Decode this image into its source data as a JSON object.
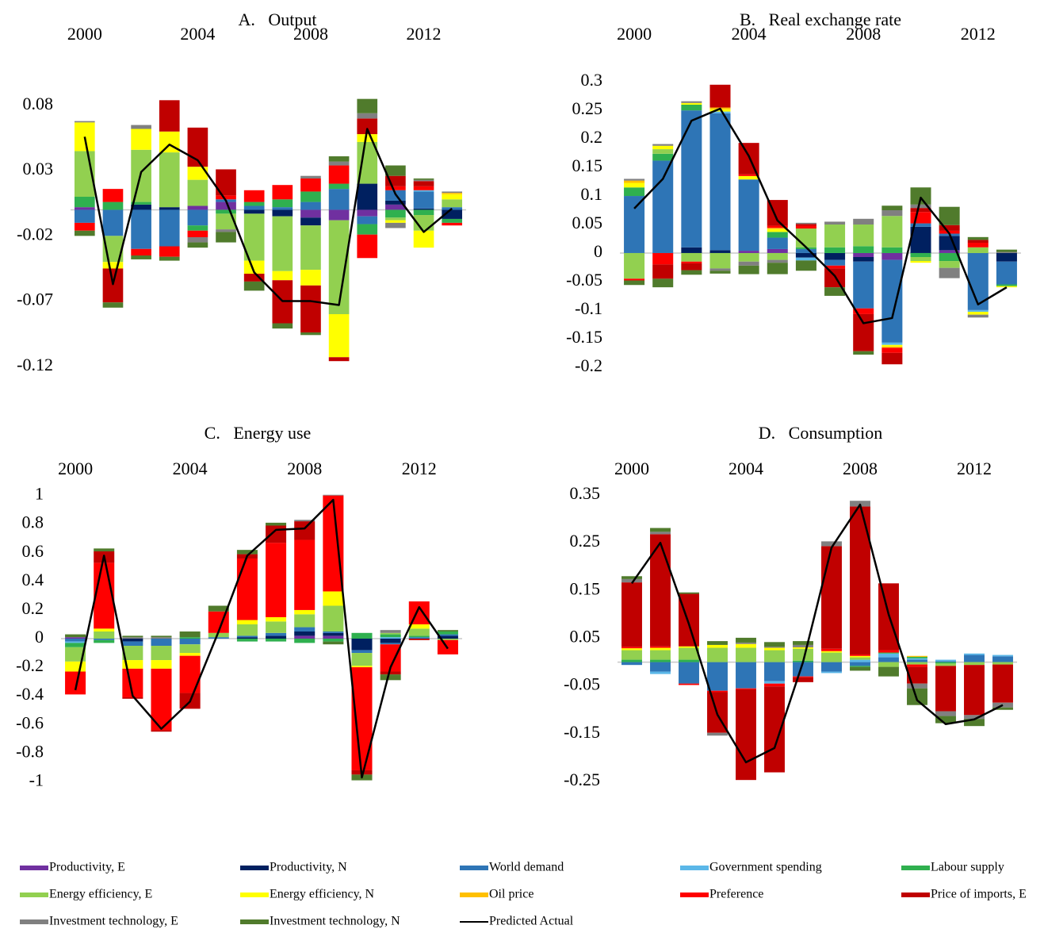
{
  "chart_data": [
    {
      "type": "bar",
      "title": "A.   Output",
      "categories": [
        2000,
        null,
        null,
        null,
        2004,
        null,
        null,
        null,
        2008,
        null,
        null,
        null,
        2012,
        null
      ],
      "ylim": [
        -0.125,
        0.1
      ],
      "yticks": [
        0.08,
        0.03,
        -0.02,
        -0.07,
        -0.12
      ],
      "series": [
        {
          "name": "Productivity, E",
          "color": "#7030a0",
          "values": [
            0.002,
            0,
            0,
            0,
            0.003,
            0.006,
            0,
            0,
            -0.006,
            -0.008,
            -0.005,
            0.004,
            0,
            0
          ]
        },
        {
          "name": "Productivity, N",
          "color": "#002060",
          "values": [
            0,
            0,
            0.004,
            0.002,
            0,
            0,
            -0.003,
            -0.005,
            -0.006,
            0,
            0.02,
            0.003,
            0.001,
            -0.007
          ]
        },
        {
          "name": "World demand",
          "color": "#2e75b6",
          "values": [
            -0.01,
            -0.02,
            -0.03,
            -0.028,
            -0.012,
            0.002,
            0.003,
            0.002,
            0.006,
            0.016,
            -0.006,
            0.008,
            0.013,
            0.002
          ]
        },
        {
          "name": "Government spending",
          "color": "#5bb7e8",
          "values": [
            0,
            0,
            0,
            0,
            0,
            0,
            0,
            0,
            0,
            0,
            0,
            0,
            0.001,
            0
          ]
        },
        {
          "name": "Labour supply",
          "color": "#2fb04f",
          "values": [
            0.008,
            0.006,
            0.002,
            0,
            -0.004,
            -0.003,
            0.003,
            0.006,
            0.008,
            0.004,
            -0.008,
            -0.006,
            -0.004,
            -0.003
          ]
        },
        {
          "name": "Energy efficiency, E",
          "color": "#92d050",
          "values": [
            0.035,
            -0.02,
            0.04,
            0.042,
            0.02,
            -0.012,
            -0.036,
            -0.042,
            -0.034,
            -0.072,
            0.032,
            -0.002,
            -0.012,
            0.006
          ]
        },
        {
          "name": "Energy efficiency, N",
          "color": "#ffff00",
          "values": [
            0.022,
            -0.005,
            0.016,
            0.016,
            0.01,
            0,
            -0.01,
            -0.007,
            -0.012,
            -0.033,
            0.006,
            -0.002,
            -0.013,
            0.004
          ]
        },
        {
          "name": "Oil price",
          "color": "#ffc000",
          "values": [
            0,
            0,
            0,
            0,
            0,
            0,
            0,
            0,
            0,
            0,
            0,
            0,
            0,
            0.001
          ]
        },
        {
          "name": "Preference",
          "color": "#ff0000",
          "values": [
            -0.006,
            0.01,
            -0.005,
            -0.008,
            -0.005,
            0.003,
            0.009,
            0.011,
            0.01,
            0.014,
            -0.018,
            0.003,
            0.003,
            -0.002
          ]
        },
        {
          "name": "Price of imports, E",
          "color": "#c00000",
          "values": [
            0,
            -0.026,
            0,
            0.024,
            0.03,
            0.02,
            -0.006,
            -0.033,
            -0.036,
            -0.003,
            0.012,
            0.008,
            0.004,
            0
          ]
        },
        {
          "name": "Investment technology, E",
          "color": "#808080",
          "values": [
            0.001,
            0,
            0.003,
            0,
            -0.004,
            -0.002,
            0,
            0,
            0.002,
            0.003,
            0.004,
            -0.004,
            0.001,
            0.001
          ]
        },
        {
          "name": "Investment technology, N",
          "color": "#507b2c",
          "values": [
            -0.004,
            -0.004,
            -0.003,
            -0.003,
            -0.004,
            -0.008,
            -0.007,
            -0.004,
            -0.002,
            0.004,
            0.011,
            0.008,
            0.001,
            0
          ]
        }
      ],
      "line": {
        "name": "Predicted Actual",
        "color": "#000000",
        "values": [
          0.056,
          -0.057,
          0.029,
          0.05,
          0.038,
          0.007,
          -0.048,
          -0.07,
          -0.07,
          -0.073,
          0.062,
          0.012,
          -0.017,
          0.001
        ]
      }
    },
    {
      "type": "bar",
      "title": "B.   Real exchange rate",
      "categories": [
        2000,
        null,
        null,
        null,
        2004,
        null,
        null,
        null,
        2008,
        null,
        null,
        null,
        2012,
        null
      ],
      "ylim": [
        -0.21,
        0.31
      ],
      "yticks": [
        0.3,
        0.25,
        0.2,
        0.15,
        0.1,
        0.05,
        0,
        -0.05,
        -0.1,
        -0.15,
        -0.2
      ],
      "series": [
        {
          "values": [
            0,
            0,
            0,
            0,
            0.004,
            0.007,
            0,
            0,
            -0.007,
            -0.012,
            0,
            0.005,
            0,
            0
          ]
        },
        {
          "values": [
            0,
            0,
            0.01,
            0.005,
            0,
            0,
            -0.008,
            -0.012,
            -0.008,
            0,
            0.046,
            0.025,
            0,
            -0.015
          ]
        },
        {
          "values": [
            0.1,
            0.162,
            0.24,
            0.24,
            0.125,
            0.02,
            0.007,
            -0.01,
            -0.082,
            -0.145,
            0.006,
            0.004,
            -0.1,
            -0.04
          ]
        },
        {
          "values": [
            0,
            0,
            0,
            0.003,
            0,
            0,
            -0.005,
            0,
            0,
            -0.004,
            0,
            0,
            -0.003,
            0
          ]
        },
        {
          "values": [
            0.015,
            0.012,
            0.01,
            0,
            0,
            0.01,
            0.003,
            0.01,
            0.012,
            0.01,
            -0.007,
            -0.014,
            0,
            -0.003
          ]
        },
        {
          "values": [
            -0.045,
            0.008,
            -0.015,
            -0.027,
            -0.015,
            -0.012,
            0.033,
            0.04,
            0.038,
            0.055,
            -0.007,
            -0.012,
            0.01,
            0
          ]
        },
        {
          "values": [
            0.008,
            0.006,
            0.003,
            0.004,
            0.006,
            0.005,
            0,
            0,
            0,
            -0.003,
            -0.003,
            0,
            -0.005,
            -0.002
          ]
        },
        {
          "values": [
            0.004,
            0,
            0,
            0.003,
            0,
            0.002,
            0,
            0,
            0,
            -0.002,
            0,
            0,
            0,
            0
          ]
        },
        {
          "values": [
            -0.003,
            -0.02,
            -0.003,
            0,
            0.003,
            0.004,
            0.005,
            -0.005,
            -0.01,
            -0.009,
            0.02,
            0.005,
            0.008,
            0
          ]
        },
        {
          "values": [
            0,
            -0.025,
            -0.012,
            0.04,
            0.055,
            0.045,
            0.003,
            -0.033,
            -0.065,
            -0.02,
            0.007,
            0.01,
            0.005,
            0
          ]
        },
        {
          "values": [
            0.003,
            0.003,
            0.003,
            -0.004,
            -0.007,
            -0.005,
            0.002,
            0.005,
            0.01,
            0.01,
            0.006,
            -0.018,
            -0.005,
            0.002
          ]
        },
        {
          "values": [
            -0.008,
            -0.015,
            -0.008,
            -0.005,
            -0.015,
            -0.02,
            -0.018,
            -0.015,
            -0.006,
            0.008,
            0.03,
            0.032,
            0.005,
            0.004
          ]
        }
      ],
      "line": {
        "values": [
          0.078,
          0.13,
          0.232,
          0.253,
          0.17,
          0.057,
          0.01,
          -0.04,
          -0.123,
          -0.114,
          0.097,
          0.034,
          -0.09,
          -0.06
        ]
      }
    },
    {
      "type": "bar",
      "title": "C.   Energy use",
      "categories": [
        2000,
        null,
        null,
        null,
        2004,
        null,
        null,
        null,
        2008,
        null,
        null,
        null,
        2012,
        null
      ],
      "ylim": [
        -1.02,
        1.02
      ],
      "yticks": [
        1,
        0.8,
        0.6,
        0.4,
        0.2,
        0,
        -0.2,
        -0.4,
        -0.6,
        -0.8,
        -1
      ],
      "series": [
        {
          "values": [
            0.01,
            0,
            0,
            0,
            0,
            0,
            0,
            0,
            0.02,
            0.02,
            0,
            0,
            0,
            0
          ]
        },
        {
          "values": [
            0,
            0,
            -0.02,
            0,
            0,
            0,
            0.01,
            0.02,
            0.03,
            0.02,
            -0.08,
            -0.03,
            0,
            0.02
          ]
        },
        {
          "values": [
            -0.02,
            -0.01,
            -0.03,
            -0.05,
            -0.04,
            0.01,
            0.01,
            0.02,
            0.03,
            0.01,
            -0.02,
            -0.01,
            0.01,
            0.01
          ]
        },
        {
          "values": [
            -0.01,
            0,
            0,
            0,
            0,
            0,
            0,
            0,
            0,
            0,
            0,
            0.01,
            0,
            0
          ]
        },
        {
          "values": [
            -0.03,
            -0.02,
            0,
            0,
            0.01,
            0,
            -0.02,
            -0.02,
            -0.03,
            -0.02,
            0.04,
            0.02,
            0.01,
            0.02
          ]
        },
        {
          "values": [
            -0.1,
            0.05,
            -0.1,
            -0.1,
            -0.06,
            0.03,
            0.08,
            0.08,
            0.09,
            0.18,
            -0.09,
            0.01,
            0.05,
            -0.01
          ]
        },
        {
          "values": [
            -0.07,
            0.02,
            -0.06,
            -0.06,
            -0.02,
            0,
            0.03,
            0.03,
            0.03,
            0.1,
            -0.01,
            0,
            0.03,
            0
          ]
        },
        {
          "values": [
            0,
            0,
            0,
            0,
            0,
            0,
            0,
            0,
            0,
            0,
            0,
            0,
            0,
            0
          ]
        },
        {
          "values": [
            -0.16,
            0.46,
            -0.2,
            -0.43,
            -0.26,
            0.15,
            0.43,
            0.52,
            0.49,
            0.67,
            -0.72,
            -0.19,
            0.16,
            -0.1
          ]
        },
        {
          "values": [
            0,
            0.08,
            -0.01,
            -0.01,
            -0.11,
            0,
            0.03,
            0.12,
            0.13,
            0,
            -0.03,
            -0.02,
            -0.01,
            0
          ]
        },
        {
          "values": [
            0,
            0,
            0.01,
            0.01,
            0,
            0,
            0,
            0,
            0.01,
            0.005,
            0,
            0.02,
            0,
            0
          ]
        },
        {
          "values": [
            0.02,
            0.02,
            0.01,
            0.01,
            0.04,
            0.04,
            0.03,
            0.02,
            0,
            -0.02,
            -0.04,
            -0.04,
            0,
            0.01
          ]
        }
      ],
      "line": {
        "values": [
          -0.36,
          0.58,
          -0.4,
          -0.63,
          -0.44,
          0.05,
          0.58,
          0.76,
          0.77,
          0.97,
          -0.97,
          -0.2,
          0.22,
          -0.07
        ]
      }
    },
    {
      "type": "bar",
      "title": "D.   Consumption",
      "categories": [
        2000,
        null,
        null,
        null,
        2004,
        null,
        null,
        null,
        2008,
        null,
        null,
        null,
        2012,
        null
      ],
      "ylim": [
        -0.26,
        0.36
      ],
      "yticks": [
        0.35,
        0.25,
        0.15,
        0.05,
        -0.05,
        -0.15,
        -0.25
      ],
      "series": [
        {
          "values": [
            0,
            0,
            0,
            0,
            0,
            0,
            0,
            0,
            0,
            0,
            0,
            0,
            0,
            0
          ]
        },
        {
          "values": [
            0,
            0,
            0,
            0,
            0,
            0,
            0,
            0,
            0,
            0,
            0,
            0,
            0,
            0
          ]
        },
        {
          "values": [
            -0.006,
            -0.02,
            -0.045,
            -0.06,
            -0.055,
            -0.04,
            -0.03,
            -0.02,
            -0.008,
            0.01,
            0.005,
            0.002,
            0.015,
            0.012
          ]
        },
        {
          "values": [
            0,
            -0.005,
            0,
            0,
            0,
            -0.005,
            0,
            -0.003,
            0.005,
            0.008,
            0.003,
            0.003,
            0.003,
            0.003
          ]
        },
        {
          "values": [
            0.005,
            0.005,
            0.005,
            0,
            0,
            0,
            0.003,
            0,
            -0.002,
            0.002,
            0.003,
            -0.003,
            0,
            0
          ]
        },
        {
          "values": [
            0.02,
            0.02,
            0.025,
            0.03,
            0.03,
            0.025,
            0.025,
            0.02,
            0.005,
            -0.01,
            -0.005,
            -0.005,
            -0.006,
            -0.005
          ]
        },
        {
          "values": [
            0.004,
            0.005,
            0.003,
            0.006,
            0.008,
            0.005,
            0.003,
            0.003,
            0.003,
            0,
            0,
            0,
            0,
            0
          ]
        },
        {
          "values": [
            0,
            0,
            0,
            0,
            0,
            0,
            0,
            0,
            0,
            0,
            0.002,
            0,
            0,
            0
          ]
        },
        {
          "values": [
            0.003,
            0.003,
            -0.003,
            -0.003,
            -0.002,
            -0.006,
            -0.002,
            0.005,
            0.003,
            0.005,
            -0.005,
            0,
            0,
            0
          ]
        },
        {
          "values": [
            0.135,
            0.235,
            0.11,
            -0.085,
            -0.19,
            -0.18,
            -0.01,
            0.215,
            0.31,
            0.14,
            -0.035,
            -0.095,
            -0.105,
            -0.08
          ]
        },
        {
          "values": [
            0.007,
            0.005,
            0,
            -0.006,
            0.003,
            0.002,
            0.005,
            0.01,
            0.012,
            0,
            -0.01,
            -0.01,
            -0.008,
            -0.01
          ]
        },
        {
          "values": [
            0.006,
            0.008,
            0.003,
            0.008,
            0.01,
            0.01,
            0.008,
            0,
            -0.008,
            -0.02,
            -0.035,
            -0.015,
            -0.015,
            -0.005
          ]
        }
      ],
      "line": {
        "values": [
          0.165,
          0.25,
          0.08,
          -0.11,
          -0.21,
          -0.18,
          0,
          0.24,
          0.33,
          0.1,
          -0.08,
          -0.13,
          -0.12,
          -0.09
        ]
      }
    }
  ]
}
